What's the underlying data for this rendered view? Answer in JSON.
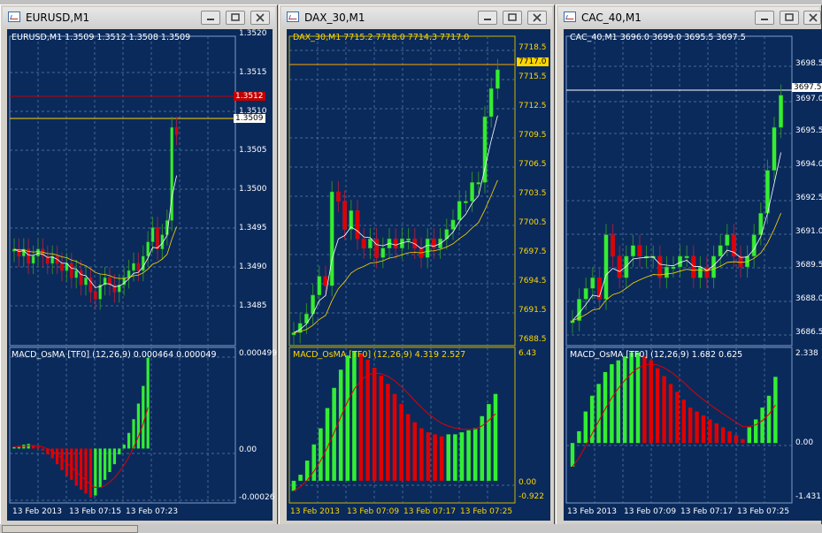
{
  "windows": [
    {
      "id": "eurusd",
      "title": "EURUSD,M1",
      "header": "EURUSD,M1  1.3509 1.3512 1.3508 1.3509",
      "labelColor": "white",
      "priceLabels": [
        "1.3520",
        "1.3515",
        "1.3510",
        "1.3505",
        "1.3500",
        "1.3495",
        "1.3490",
        "1.3485"
      ],
      "tags": [
        {
          "text": "1.3512",
          "bg": "#c00000",
          "fg": "#ffffff"
        },
        {
          "text": "1.3509",
          "bg": "#ffffff",
          "fg": "#000000"
        }
      ],
      "indicator": "MACD_OsMA [TF0] (12,26,9)  0.000464 0.000049",
      "indicatorLabels": [
        "0.000499",
        "0.00",
        "-0.00026"
      ],
      "timeLabels": [
        "13 Feb 2013",
        "13 Feb 07:15",
        "13 Feb 07:23"
      ]
    },
    {
      "id": "dax",
      "title": "DAX_30,M1",
      "header": "DAX_30,M1  7715.2 7718.0 7714.3 7717.0",
      "labelColor": "yellow",
      "priceLabels": [
        "7718.5",
        "7715.5",
        "7712.5",
        "7709.5",
        "7706.5",
        "7703.5",
        "7700.5",
        "7697.5",
        "7694.5",
        "7691.5",
        "7688.5"
      ],
      "tags": [
        {
          "text": "7717.0",
          "bg": "#ffd700",
          "fg": "#000000"
        }
      ],
      "indicator": "MACD_OsMA [TF0] (12,26,9)  4.319 2.527",
      "indicatorLabels": [
        "6.43",
        "0.00",
        "-0.922"
      ],
      "timeLabels": [
        "13 Feb 2013",
        "13 Feb 07:09",
        "13 Feb 07:17",
        "13 Feb 07:25"
      ]
    },
    {
      "id": "cac",
      "title": "CAC_40,M1",
      "header": "CAC_40,M1  3696.0 3699.0 3695.5 3697.5",
      "labelColor": "white",
      "priceLabels": [
        "3698.5",
        "3697.0",
        "3695.5",
        "3694.0",
        "3692.5",
        "3691.0",
        "3689.5",
        "3688.0",
        "3686.5"
      ],
      "tags": [
        {
          "text": "3697.5",
          "bg": "#ffffff",
          "fg": "#000000"
        }
      ],
      "indicator": "MACD_OsMA [TF0] (12,26,9)  1.682 0.625",
      "indicatorLabels": [
        "2.338",
        "0.00",
        "-1.431"
      ],
      "timeLabels": [
        "13 Feb 2013",
        "13 Feb 07:09",
        "13 Feb 07:17",
        "13 Feb 07:25"
      ]
    }
  ],
  "colors": {
    "chartBg": "#0a2a5c",
    "bull": "#33ee33",
    "bear": "#e00000",
    "grid": "#5b7fa8",
    "white": "#ffffff",
    "yellow": "#ffd700",
    "bullOutline": "#2c8a2c",
    "bearOutline": "#a02040"
  },
  "chart_data": [
    {
      "type": "candlestick",
      "title": "EURUSD,M1",
      "ylim": [
        1.348,
        1.3522
      ],
      "ohlc_recent": {
        "open": 1.3509,
        "high": 1.3512,
        "low": 1.3508,
        "close": 1.3509
      },
      "closes": [
        1.3493,
        1.3492,
        1.3493,
        1.3491,
        1.3492,
        1.3493,
        1.3492,
        1.3491,
        1.3492,
        1.3491,
        1.349,
        1.3491,
        1.3489,
        1.349,
        1.3488,
        1.3489,
        1.3487,
        1.3486,
        1.3488,
        1.3489,
        1.3488,
        1.3487,
        1.3488,
        1.3489,
        1.349,
        1.3491,
        1.349,
        1.3492,
        1.3494,
        1.3496,
        1.3493,
        1.3495,
        1.3497,
        1.351,
        1.3509
      ],
      "indicator": {
        "name": "MACD_OsMA [TF0] (12,26,9)",
        "values": [
          0.000464,
          4.9e-05
        ],
        "ylim": [
          -0.00026,
          0.000499
        ]
      }
    },
    {
      "type": "candlestick",
      "title": "DAX_30,M1",
      "ylim": [
        7688,
        7720
      ],
      "ohlc_recent": {
        "open": 7715.2,
        "high": 7718.0,
        "low": 7714.3,
        "close": 7717.0
      },
      "closes": [
        7689,
        7690,
        7691,
        7693,
        7695,
        7694,
        7704,
        7703,
        7700,
        7702,
        7699,
        7698,
        7699,
        7697,
        7698,
        7699,
        7698,
        7699,
        7699,
        7698,
        7697,
        7699,
        7698,
        7699,
        7700,
        7701,
        7703,
        7703,
        7705,
        7705,
        7712,
        7715,
        7717
      ],
      "indicator": {
        "name": "MACD_OsMA [TF0] (12,26,9)",
        "values": [
          4.319,
          2.527
        ],
        "ylim": [
          -0.922,
          6.43
        ]
      }
    },
    {
      "type": "candlestick",
      "title": "CAC_40,M1",
      "ylim": [
        3686,
        3700
      ],
      "ohlc_recent": {
        "open": 3696.0,
        "high": 3699.0,
        "low": 3695.5,
        "close": 3697.5
      },
      "closes": [
        3687,
        3688,
        3688.5,
        3689,
        3688,
        3691,
        3690,
        3689,
        3690,
        3690.5,
        3690,
        3690,
        3690,
        3689,
        3689.5,
        3689.5,
        3690,
        3690,
        3689,
        3689.5,
        3689,
        3690,
        3690.5,
        3691,
        3690,
        3689.5,
        3690,
        3691,
        3692,
        3694,
        3696,
        3697.5
      ],
      "indicator": {
        "name": "MACD_OsMA [TF0] (12,26,9)",
        "values": [
          1.682,
          0.625
        ],
        "ylim": [
          -1.431,
          2.338
        ]
      }
    }
  ]
}
